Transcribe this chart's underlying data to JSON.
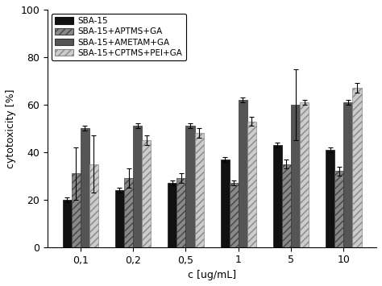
{
  "categories": [
    "0,1",
    "0,2",
    "0,5",
    "1",
    "5",
    "10"
  ],
  "series": {
    "SBA-15": {
      "values": [
        20,
        24,
        27,
        37,
        43,
        41
      ],
      "errors": [
        1,
        1,
        1,
        1,
        1,
        1
      ],
      "color": "#111111",
      "hatch": "",
      "edgecolor": "#111111"
    },
    "SBA-15+APTMS+GA": {
      "values": [
        31,
        29,
        29,
        27,
        35,
        32
      ],
      "errors": [
        11,
        4,
        2,
        1,
        2,
        2
      ],
      "color": "#888888",
      "hatch": "////",
      "edgecolor": "#444444"
    },
    "SBA-15+AMETAM+GA": {
      "values": [
        50,
        51,
        51,
        62,
        60,
        61
      ],
      "errors": [
        1,
        1,
        1,
        1,
        15,
        1
      ],
      "color": "#555555",
      "hatch": "",
      "edgecolor": "#333333"
    },
    "SBA-15+CPTMS+PEI+GA": {
      "values": [
        35,
        45,
        48,
        53,
        61,
        67
      ],
      "errors": [
        12,
        2,
        2,
        2,
        1,
        2
      ],
      "color": "#cccccc",
      "hatch": "////",
      "edgecolor": "#888888"
    }
  },
  "xlabel": "c [ug/mL]",
  "ylabel": "cytotoxicity [%]",
  "ylim": [
    0,
    100
  ],
  "yticks": [
    0,
    20,
    40,
    60,
    80,
    100
  ],
  "legend_order": [
    "SBA-15",
    "SBA-15+APTMS+GA",
    "SBA-15+AMETAM+GA",
    "SBA-15+CPTMS+PEI+GA"
  ],
  "bar_width": 0.17,
  "background_color": "#ffffff"
}
